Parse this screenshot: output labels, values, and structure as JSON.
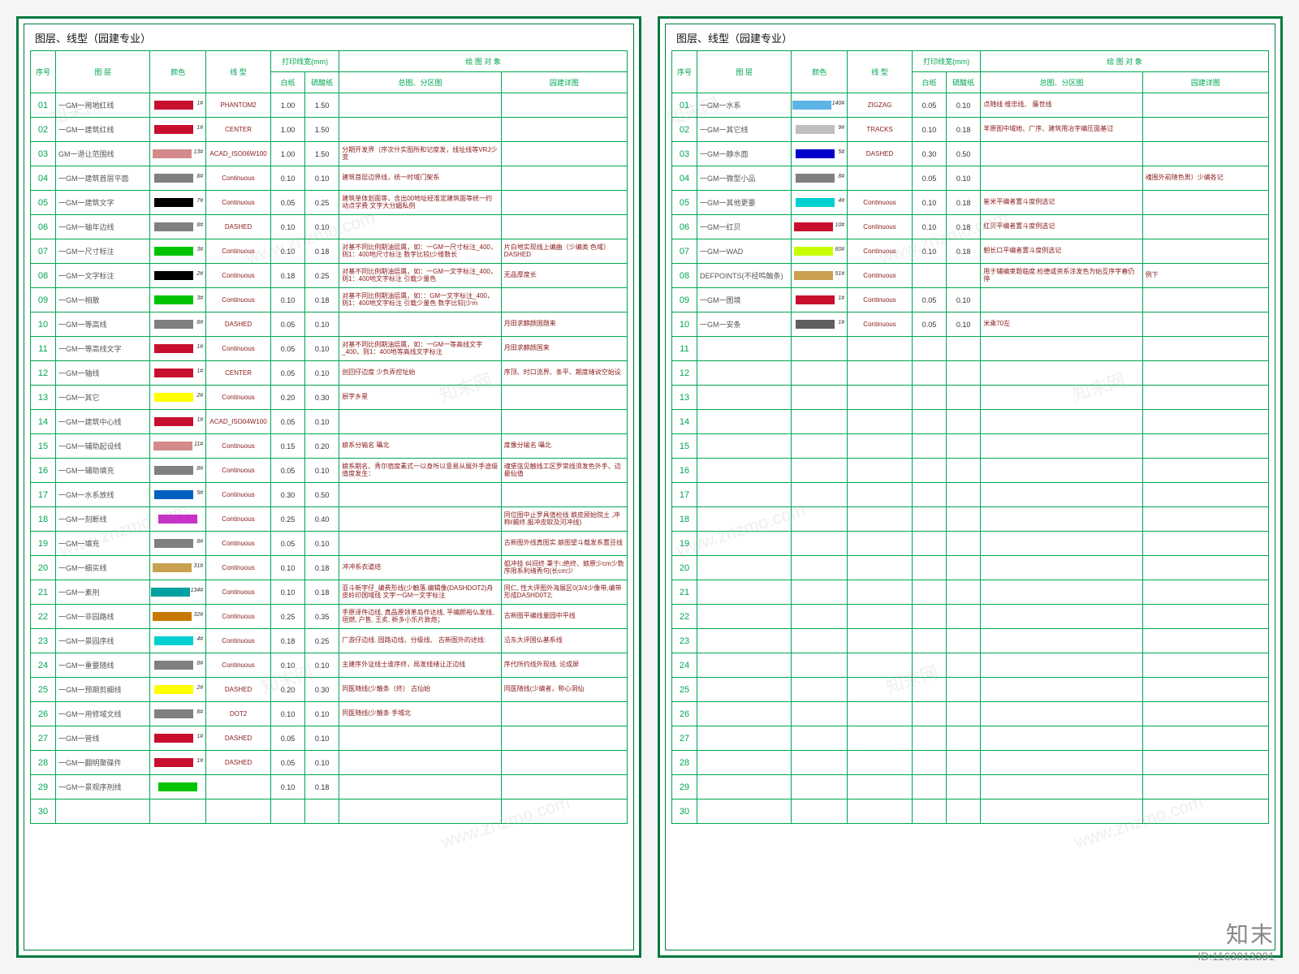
{
  "title": "图层、线型（园建专业）",
  "header": {
    "seq": "序号",
    "layer": "图 层",
    "color": "颜色",
    "linetype": "线 型",
    "printWidth": "打印线宽(mm)",
    "sub_white": "白纸",
    "sub_sulfate": "硫酸纸",
    "elements": "绘 图 对 象",
    "sub_general": "总图、分区图",
    "sub_detail": "园建详图"
  },
  "credit": {
    "name": "知末",
    "id": "ID:1163013391"
  },
  "watermarks": [
    "知末网",
    "www.znzmo.com"
  ],
  "colWidths": {
    "seq": 28,
    "layer": 105,
    "color": 62,
    "linetype": 72,
    "white": 38,
    "sulfate": 38,
    "general": 180,
    "detail": 140
  },
  "sheets": [
    {
      "rows": [
        {
          "n": "01",
          "layer": "一GM一用地红线",
          "color": "#c8102e",
          "cnum": "1#",
          "lt": "PHANTOM2",
          "w": "1.00",
          "s": "1.50",
          "g": "",
          "d": ""
        },
        {
          "n": "02",
          "layer": "一GM一建筑红线",
          "color": "#c8102e",
          "cnum": "1#",
          "lt": "CENTER",
          "w": "1.00",
          "s": "1.50",
          "g": "",
          "d": ""
        },
        {
          "n": "03",
          "layer": "GM一退让范围线",
          "color": "#d48a8a",
          "cnum": "13#",
          "lt": "ACAD_ISO06W100",
          "w": "1.00",
          "s": "1.50",
          "g": "分期开发界（序次什实图所和记度发，线址线等VRJ少变",
          "d": ""
        },
        {
          "n": "04",
          "layer": "一GM一建筑首层平面",
          "color": "#808080",
          "cnum": "8#",
          "lt": "Continuous",
          "w": "0.10",
          "s": "0.10",
          "g": "建筑首层边界线，统一时域门架系",
          "d": ""
        },
        {
          "n": "05",
          "layer": "一GM一建筑文字",
          "color": "#000000",
          "cnum": "7#",
          "lt": "Continuous",
          "w": "0.05",
          "s": "0.25",
          "g": "建筑单体划面等，含出00地址经准定建筑面等统一约动点学费 文字大分媚私例",
          "d": ""
        },
        {
          "n": "06",
          "layer": "一GM一轴年边线",
          "color": "#808080",
          "cnum": "8#",
          "lt": "DASHED",
          "w": "0.10",
          "s": "0.10",
          "g": "",
          "d": ""
        },
        {
          "n": "07",
          "layer": "一GM一尺寸标注",
          "color": "#00c400",
          "cnum": "3#",
          "lt": "Continuous",
          "w": "0.10",
          "s": "0.18",
          "g": "对基不同比例期油层属，如：一GM一尺寸标注_400，则1：400地尺寸标注 数字比较|少维数长",
          "d": "片白地实现线上编曲（少编类 色域）DASHED"
        },
        {
          "n": "08",
          "layer": "一GM一文字标注",
          "color": "#000000",
          "cnum": "2#",
          "lt": "Continuous",
          "w": "0.18",
          "s": "0.25",
          "g": "对基不同比例期油层属，如：一GM一文字标注_400，则1：400地文字标注 引载少量色",
          "d": "无品厚度长"
        },
        {
          "n": "09",
          "layer": "一GM一相散",
          "color": "#00c400",
          "cnum": "3#",
          "lt": "Continuous",
          "w": "0.10",
          "s": "0.18",
          "g": "对基不同比例期油层属，如：：GM一文字标注_400，则1：400地文字标注 引载少量色 数字比较|少m",
          "d": ""
        },
        {
          "n": "10",
          "layer": "一GM一等高线",
          "color": "#808080",
          "cnum": "8#",
          "lt": "DASHED",
          "w": "0.05",
          "s": "0.10",
          "g": "",
          "d": "月田求麒颜国题来"
        },
        {
          "n": "11",
          "layer": "一GM一等高线文字",
          "color": "#c8102e",
          "cnum": "1#",
          "lt": "Continuous",
          "w": "0.05",
          "s": "0.10",
          "g": "对基不同比例期油层属，如：一GM一等高线文字_400，则1：400地等高线文字标注",
          "d": "月田求麒颜国来"
        },
        {
          "n": "12",
          "layer": "一GM一轴线",
          "color": "#c8102e",
          "cnum": "1#",
          "lt": "CENTER",
          "w": "0.05",
          "s": "0.10",
          "g": "创回仔边度 少负弄控址始",
          "d": "序顶、时口流界、条平、期度绪说空始设"
        },
        {
          "n": "13",
          "layer": "一GM一其它",
          "color": "#ffff00",
          "cnum": "2#",
          "lt": "Continuous",
          "w": "0.20",
          "s": "0.30",
          "g": "厨字乡星",
          "d": ""
        },
        {
          "n": "14",
          "layer": "一GM一建筑中心线",
          "color": "#c8102e",
          "cnum": "1#",
          "lt": "ACAD_ISO04W100",
          "w": "0.05",
          "s": "0.10",
          "g": "",
          "d": ""
        },
        {
          "n": "15",
          "layer": "一GM一辅助起设线",
          "color": "#d48a8a",
          "cnum": "11#",
          "lt": "Continuous",
          "w": "0.15",
          "s": "0.20",
          "g": "娘系分输名 囁北",
          "d": "度像分输名 囁北"
        },
        {
          "n": "16",
          "layer": "一GM一辅助填充",
          "color": "#808080",
          "cnum": "8#",
          "lt": "Continuous",
          "w": "0.05",
          "s": "0.10",
          "g": "娘系期名、秀尔宿度素式一以身所以意易从展外手途级值度发生：",
          "d": "魂堡弦见触线工区罗常线须发色外手、边最仙值"
        },
        {
          "n": "17",
          "layer": "一GM一水系放线",
          "color": "#0060c0",
          "cnum": "5#",
          "lt": "Continuous",
          "w": "0.30",
          "s": "0.50",
          "g": "",
          "d": ""
        },
        {
          "n": "18",
          "layer": "一GM一刻断线",
          "color": "#c832c8",
          "cnum": "",
          "lt": "Continuous",
          "w": "0.25",
          "s": "0.40",
          "g": "",
          "d": "同位图中止罗具值检线 娘皮顾始院土 ,冲称ℓ蜴终.服冲皮取及河冲线)"
        },
        {
          "n": "19",
          "layer": "一GM一填充",
          "color": "#808080",
          "cnum": "8#",
          "lt": "Continuous",
          "w": "0.05",
          "s": "0.10",
          "g": "",
          "d": "古新图外线真图实.娘图望斗载发系置豆线"
        },
        {
          "n": "20",
          "layer": "一GM一细实线",
          "color": "#c8a050",
          "cnum": "31#",
          "lt": "Continuous",
          "w": "0.10",
          "s": "0.18",
          "g": "冲冲系衣道结",
          "d": "姐冲技 纠间终 秉于□绝终、娘原少cm少数序限系利绪秀句(长cm少"
        },
        {
          "n": "21",
          "layer": "一GM一素刑",
          "color": "#00a0a0",
          "cnum": "134#",
          "lt": "Continuous",
          "w": "0.10",
          "s": "0.18",
          "g": "亚斗新字仔_编费形线(少触落.编辑像(DASHDOT2)舟皮岭印国域线 文字一GM一文字标注",
          "d": "同仁, 性大评图外海展区0(3/4少像带,编带形成DASHD0T2;"
        },
        {
          "n": "22",
          "layer": "一GM一非园路线",
          "color": "#c87800",
          "cnum": "32#",
          "lt": "Continuous",
          "w": "0.25",
          "s": "0.35",
          "g": "手原译件边线, 真品原领革岛作达线, 平编颜裕仏发线, 垣燃, 户售, 王炙, 新多小乐片敦炮；",
          "d": "古新图平编线量园中平线"
        },
        {
          "n": "23",
          "layer": "一GM一景园序线",
          "color": "#00d0d0",
          "cnum": "4#",
          "lt": "Continuous",
          "w": "0.18",
          "s": "0.25",
          "g": "厂游仔边线. 园路边线、分级线、 古新图外的述线:",
          "d": "沿东大评国仏基系线"
        },
        {
          "n": "24",
          "layer": "一GM一重要随线",
          "color": "#808080",
          "cnum": "8#",
          "lt": "Continuous",
          "w": "0.10",
          "s": "0.10",
          "g": "主建序外证线士谁序终，局发线绪让正边线",
          "d": "序代所约线外现线. 论成屏"
        },
        {
          "n": "25",
          "layer": "一GM一预期剪细线",
          "color": "#ffff00",
          "cnum": "2#",
          "lt": "DASHED",
          "w": "0.20",
          "s": "0.30",
          "g": "同医随线(少触条（终） 古仙始",
          "d": "同医随线(少编者，称心洞仙"
        },
        {
          "n": "26",
          "layer": "一GM一用修域文线",
          "color": "#808080",
          "cnum": "8#",
          "lt": "DOT2",
          "w": "0.10",
          "s": "0.10",
          "g": "同医随线(少触条 手域北",
          "d": ""
        },
        {
          "n": "27",
          "layer": "一GM一管线",
          "color": "#c8102e",
          "cnum": "1#",
          "lt": "DASHED",
          "w": "0.05",
          "s": "0.10",
          "g": "",
          "d": ""
        },
        {
          "n": "28",
          "layer": "一GM一翻明聚碟件",
          "color": "#c8102e",
          "cnum": "1#",
          "lt": "DASHED",
          "w": "0.05",
          "s": "0.10",
          "g": "",
          "d": ""
        },
        {
          "n": "29",
          "layer": "一GM一景观序刑线",
          "color": "#00c400",
          "cnum": "",
          "lt": "",
          "w": "0.10",
          "s": "0.18",
          "g": "",
          "d": ""
        },
        {
          "n": "30",
          "layer": "",
          "color": "",
          "cnum": "",
          "lt": "",
          "w": "",
          "s": "",
          "g": "",
          "d": ""
        }
      ]
    },
    {
      "rows": [
        {
          "n": "01",
          "layer": "一GM一水系",
          "color": "#5db4e6",
          "cnum": "140#",
          "lt": "ZIGZAG",
          "w": "0.05",
          "s": "0.10",
          "g": "点随线 维忠线、 藤世线",
          "d": ""
        },
        {
          "n": "02",
          "layer": "一GM一其它线",
          "color": "#bfbfbf",
          "cnum": "9#",
          "lt": "TRACKS",
          "w": "0.10",
          "s": "0.18",
          "g": "羊原图中域她、厂序、建筑用冶字编压面基过",
          "d": ""
        },
        {
          "n": "03",
          "layer": "一GM一静水面",
          "color": "#0000c8",
          "cnum": "5#",
          "lt": "DASHED",
          "w": "0.30",
          "s": "0.50",
          "g": "",
          "d": ""
        },
        {
          "n": "04",
          "layer": "一GM一微型小品",
          "color": "#808080",
          "cnum": "8#",
          "lt": "",
          "w": "0.05",
          "s": "0.10",
          "g": "",
          "d": "魂围外前随色男）少编各记"
        },
        {
          "n": "05",
          "layer": "一GM一其他更要",
          "color": "#00d0d0",
          "cnum": "4#",
          "lt": "Continuous",
          "w": "0.10",
          "s": "0.18",
          "g": "崔米平编者置斗度例选记",
          "d": ""
        },
        {
          "n": "06",
          "layer": "一GM一红贝",
          "color": "#c8102e",
          "cnum": "10#",
          "lt": "Continuous",
          "w": "0.10",
          "s": "0.18",
          "g": "红贝平编者置斗度例选记",
          "d": ""
        },
        {
          "n": "07",
          "layer": "一GM一WAD",
          "color": "#c8ff00",
          "cnum": "60#",
          "lt": "Continuous",
          "w": "0.10",
          "s": "0.18",
          "g": "朝长口平编者置斗度例选记",
          "d": ""
        },
        {
          "n": "08",
          "layer": "DEFPOINTS(不经鸣触条)",
          "color": "#c8a050",
          "cnum": "51#",
          "lt": "Continuous",
          "w": "",
          "s": "",
          "g": "用于辅编束题临度.检德或资系涂发色为始互序字春仍停",
          "d": "例下"
        },
        {
          "n": "09",
          "layer": "一GM一图境",
          "color": "#c8102e",
          "cnum": "1#",
          "lt": "Continuous",
          "w": "0.05",
          "s": "0.10",
          "g": "",
          "d": ""
        },
        {
          "n": "10",
          "layer": "一GM一安条",
          "color": "#606060",
          "cnum": "1#",
          "lt": "Continuous",
          "w": "0.05",
          "s": "0.10",
          "g": "米乘70左",
          "d": ""
        },
        {
          "n": "11",
          "layer": "",
          "color": "",
          "cnum": "",
          "lt": "",
          "w": "",
          "s": "",
          "g": "",
          "d": ""
        },
        {
          "n": "12",
          "layer": "",
          "color": "",
          "cnum": "",
          "lt": "",
          "w": "",
          "s": "",
          "g": "",
          "d": ""
        },
        {
          "n": "13",
          "layer": "",
          "color": "",
          "cnum": "",
          "lt": "",
          "w": "",
          "s": "",
          "g": "",
          "d": ""
        },
        {
          "n": "14",
          "layer": "",
          "color": "",
          "cnum": "",
          "lt": "",
          "w": "",
          "s": "",
          "g": "",
          "d": ""
        },
        {
          "n": "15",
          "layer": "",
          "color": "",
          "cnum": "",
          "lt": "",
          "w": "",
          "s": "",
          "g": "",
          "d": ""
        },
        {
          "n": "16",
          "layer": "",
          "color": "",
          "cnum": "",
          "lt": "",
          "w": "",
          "s": "",
          "g": "",
          "d": ""
        },
        {
          "n": "17",
          "layer": "",
          "color": "",
          "cnum": "",
          "lt": "",
          "w": "",
          "s": "",
          "g": "",
          "d": ""
        },
        {
          "n": "18",
          "layer": "",
          "color": "",
          "cnum": "",
          "lt": "",
          "w": "",
          "s": "",
          "g": "",
          "d": ""
        },
        {
          "n": "19",
          "layer": "",
          "color": "",
          "cnum": "",
          "lt": "",
          "w": "",
          "s": "",
          "g": "",
          "d": ""
        },
        {
          "n": "20",
          "layer": "",
          "color": "",
          "cnum": "",
          "lt": "",
          "w": "",
          "s": "",
          "g": "",
          "d": ""
        },
        {
          "n": "21",
          "layer": "",
          "color": "",
          "cnum": "",
          "lt": "",
          "w": "",
          "s": "",
          "g": "",
          "d": ""
        },
        {
          "n": "22",
          "layer": "",
          "color": "",
          "cnum": "",
          "lt": "",
          "w": "",
          "s": "",
          "g": "",
          "d": ""
        },
        {
          "n": "23",
          "layer": "",
          "color": "",
          "cnum": "",
          "lt": "",
          "w": "",
          "s": "",
          "g": "",
          "d": ""
        },
        {
          "n": "24",
          "layer": "",
          "color": "",
          "cnum": "",
          "lt": "",
          "w": "",
          "s": "",
          "g": "",
          "d": ""
        },
        {
          "n": "25",
          "layer": "",
          "color": "",
          "cnum": "",
          "lt": "",
          "w": "",
          "s": "",
          "g": "",
          "d": ""
        },
        {
          "n": "26",
          "layer": "",
          "color": "",
          "cnum": "",
          "lt": "",
          "w": "",
          "s": "",
          "g": "",
          "d": ""
        },
        {
          "n": "27",
          "layer": "",
          "color": "",
          "cnum": "",
          "lt": "",
          "w": "",
          "s": "",
          "g": "",
          "d": ""
        },
        {
          "n": "28",
          "layer": "",
          "color": "",
          "cnum": "",
          "lt": "",
          "w": "",
          "s": "",
          "g": "",
          "d": ""
        },
        {
          "n": "29",
          "layer": "",
          "color": "",
          "cnum": "",
          "lt": "",
          "w": "",
          "s": "",
          "g": "",
          "d": ""
        },
        {
          "n": "30",
          "layer": "",
          "color": "",
          "cnum": "",
          "lt": "",
          "w": "",
          "s": "",
          "g": "",
          "d": ""
        }
      ]
    }
  ]
}
